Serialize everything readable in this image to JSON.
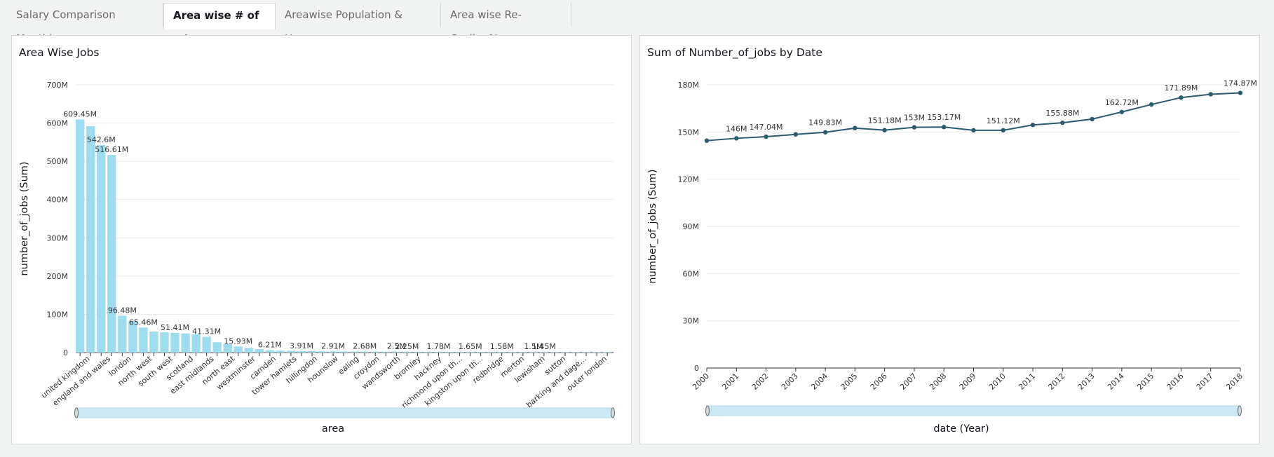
{
  "tabs": [
    {
      "label": "Salary Comparison Monthly",
      "active": false
    },
    {
      "label": "Area wise # of Jobs",
      "active": true
    },
    {
      "label": "Areawise Population & Houses",
      "active": false
    },
    {
      "label": "Area wise Re-Cycling%",
      "active": false
    }
  ],
  "left_panel": {
    "title": "Area Wise Jobs"
  },
  "right_panel": {
    "title": "Sum of Number_of_jobs by Date"
  },
  "colors": {
    "bar": "#9edcef",
    "line": "#2d5a6e",
    "scrollbar": "#cde7f3"
  },
  "chart_data": [
    {
      "type": "bar",
      "title": "Area Wise Jobs",
      "xlabel": "area",
      "ylabel": "number_of_jobs (Sum)",
      "ylim": [
        0,
        700
      ],
      "yticks": [
        "0",
        "100M",
        "200M",
        "300M",
        "400M",
        "500M",
        "600M",
        "700M"
      ],
      "tick_labels": [
        "united kingdom",
        "england and wales",
        "london",
        "north west",
        "south west",
        "scotland",
        "east midlands",
        "north east",
        "westminster",
        "camden",
        "tower hamlets",
        "hillingdon",
        "hounslow",
        "ealing",
        "croydon",
        "wandsworth",
        "bromley",
        "hackney",
        "richmond upon th...",
        "kingston upon th...",
        "redbridge",
        "merton",
        "lewisham",
        "sutton",
        "barking and dage...",
        "outer london"
      ],
      "values": [
        609.45,
        592,
        542.6,
        516.61,
        96.48,
        82,
        65.46,
        55,
        53,
        51.41,
        50,
        48,
        41.31,
        27,
        22,
        15.93,
        12,
        9,
        6.21,
        5,
        4.5,
        3.91,
        3.5,
        3.2,
        2.91,
        2.8,
        2.75,
        2.68,
        2.6,
        2.55,
        2.5,
        2.25,
        2.0,
        1.9,
        1.78,
        1.72,
        1.68,
        1.65,
        1.62,
        1.6,
        1.58,
        1.55,
        1.52,
        1.5,
        1.45,
        1.42,
        1.4,
        1.38,
        1.35,
        1.32,
        1.3
      ],
      "data_labels": [
        {
          "index": 0,
          "text": "609.45M"
        },
        {
          "index": 2,
          "text": "542.6M"
        },
        {
          "index": 3,
          "text": "516.61M"
        },
        {
          "index": 4,
          "text": "96.48M"
        },
        {
          "index": 6,
          "text": "65.46M"
        },
        {
          "index": 9,
          "text": "51.41M"
        },
        {
          "index": 12,
          "text": "41.31M"
        },
        {
          "index": 15,
          "text": "15.93M"
        },
        {
          "index": 18,
          "text": "6.21M"
        },
        {
          "index": 21,
          "text": "3.91M"
        },
        {
          "index": 24,
          "text": "2.91M"
        },
        {
          "index": 27,
          "text": "2.68M"
        },
        {
          "index": 30,
          "text": "2.5M"
        },
        {
          "index": 31,
          "text": "2.25M"
        },
        {
          "index": 34,
          "text": "1.78M"
        },
        {
          "index": 37,
          "text": "1.65M"
        },
        {
          "index": 40,
          "text": "1.58M"
        },
        {
          "index": 43,
          "text": "1.5M"
        },
        {
          "index": 44,
          "text": "1.45M"
        }
      ]
    },
    {
      "type": "line",
      "title": "Sum of Number_of_jobs by Date",
      "xlabel": "date (Year)",
      "ylabel": "number_of_jobs (Sum)",
      "ylim": [
        0,
        180
      ],
      "yticks": [
        "0",
        "30M",
        "60M",
        "90M",
        "120M",
        "150M",
        "180M"
      ],
      "x": [
        "2000",
        "2001",
        "2002",
        "2003",
        "2004",
        "2005",
        "2006",
        "2007",
        "2008",
        "2009",
        "2010",
        "2011",
        "2012",
        "2013",
        "2014",
        "2015",
        "2016",
        "2017",
        "2018"
      ],
      "values": [
        144.5,
        146,
        147.04,
        148.5,
        149.83,
        152.5,
        151.18,
        153,
        153.17,
        151.1,
        151.12,
        154.5,
        155.88,
        158.2,
        162.72,
        167.5,
        171.89,
        174.0,
        174.87
      ],
      "data_labels": [
        {
          "index": 1,
          "text": "146M"
        },
        {
          "index": 2,
          "text": "147.04M"
        },
        {
          "index": 4,
          "text": "149.83M"
        },
        {
          "index": 6,
          "text": "151.18M"
        },
        {
          "index": 7,
          "text": "153M"
        },
        {
          "index": 8,
          "text": "153.17M"
        },
        {
          "index": 10,
          "text": "151.12M"
        },
        {
          "index": 12,
          "text": "155.88M"
        },
        {
          "index": 14,
          "text": "162.72M"
        },
        {
          "index": 16,
          "text": "171.89M"
        },
        {
          "index": 18,
          "text": "174.87M"
        }
      ]
    }
  ]
}
